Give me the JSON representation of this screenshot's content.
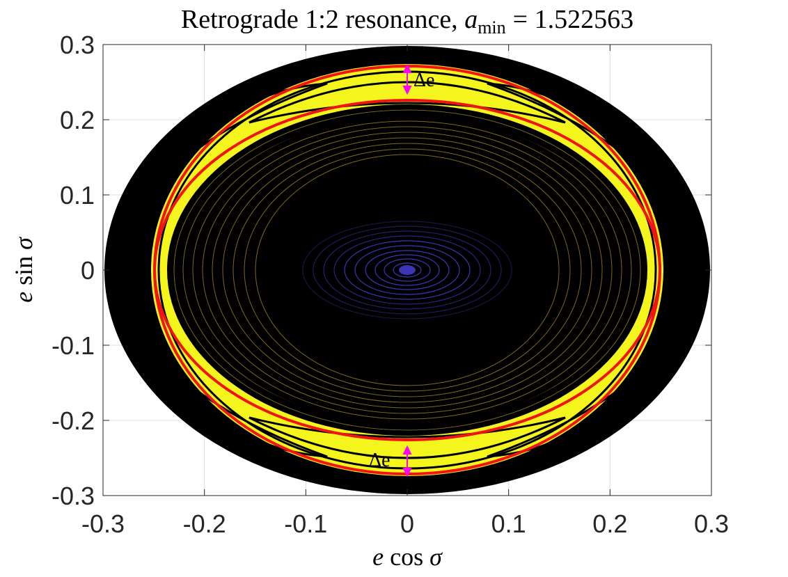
{
  "chart_data": {
    "type": "contour",
    "title": "Retrograde 1:2 resonance,",
    "title_math": {
      "symbol": "a",
      "subscript": "min",
      "value": "= 1.522563"
    },
    "x_label": {
      "symbol": "e",
      "function": "cos",
      "variable": "σ"
    },
    "y_label": {
      "symbol": "e",
      "function": "sin",
      "variable": "σ"
    },
    "annotations": [
      "Δe",
      "Δe"
    ],
    "xlim": [
      -0.3,
      0.3
    ],
    "ylim": [
      -0.3,
      0.3
    ],
    "xticks": [
      -0.3,
      -0.2,
      -0.1,
      0,
      0.1,
      0.2,
      0.3
    ],
    "yticks": [
      -0.3,
      -0.2,
      -0.1,
      0,
      0.1,
      0.2,
      0.3
    ],
    "grid": true
  }
}
